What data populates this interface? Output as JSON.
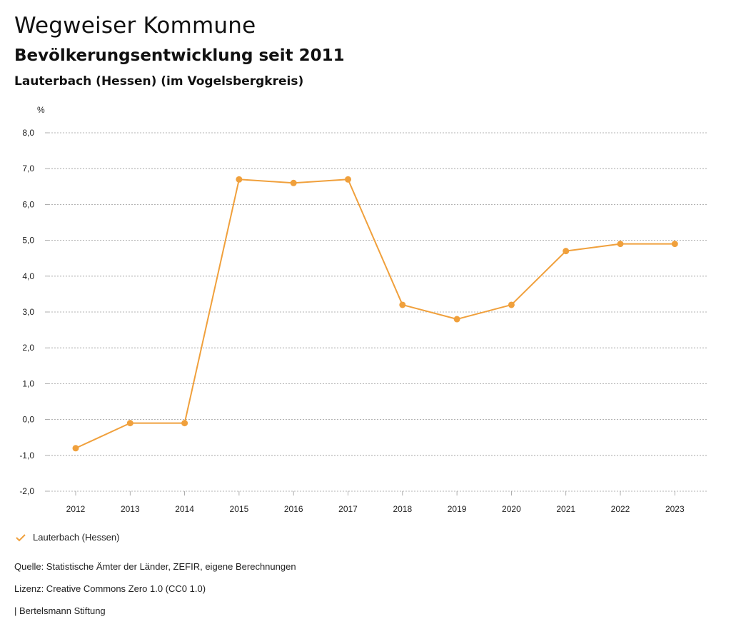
{
  "header": {
    "title": "Wegweiser Kommune",
    "subtitle": "Bevölkerungsentwicklung seit 2011",
    "region": "Lauterbach (Hessen) (im Vogelsbergkreis)"
  },
  "colors": {
    "series": "#f0a03c",
    "grid": "#9a9a9a",
    "text": "#222222"
  },
  "chart_data": {
    "type": "line",
    "title": "Bevölkerungsentwicklung seit 2011",
    "ylabel": "%",
    "xlabel": "",
    "categories": [
      "2012",
      "2013",
      "2014",
      "2015",
      "2016",
      "2017",
      "2018",
      "2019",
      "2020",
      "2021",
      "2022",
      "2023"
    ],
    "series": [
      {
        "name": "Lauterbach (Hessen)",
        "values": [
          -0.8,
          -0.1,
          -0.1,
          6.7,
          6.6,
          6.7,
          3.2,
          2.8,
          3.2,
          4.7,
          4.9,
          4.9
        ]
      }
    ],
    "ylim": [
      -2.0,
      8.0
    ],
    "yticks": [
      "8,0",
      "7,0",
      "6,0",
      "5,0",
      "4,0",
      "3,0",
      "2,0",
      "1,0",
      "0,0",
      "-1,0",
      "-2,0"
    ],
    "grid": true,
    "legend_position": "bottom-left"
  },
  "legend": {
    "label": "Lauterbach (Hessen)"
  },
  "footer": {
    "source": "Quelle: Statistische Ämter der Länder, ZEFIR, eigene Berechnungen",
    "license": "Lizenz: Creative Commons Zero 1.0 (CC0 1.0)",
    "publisher": "| Bertelsmann Stiftung"
  }
}
